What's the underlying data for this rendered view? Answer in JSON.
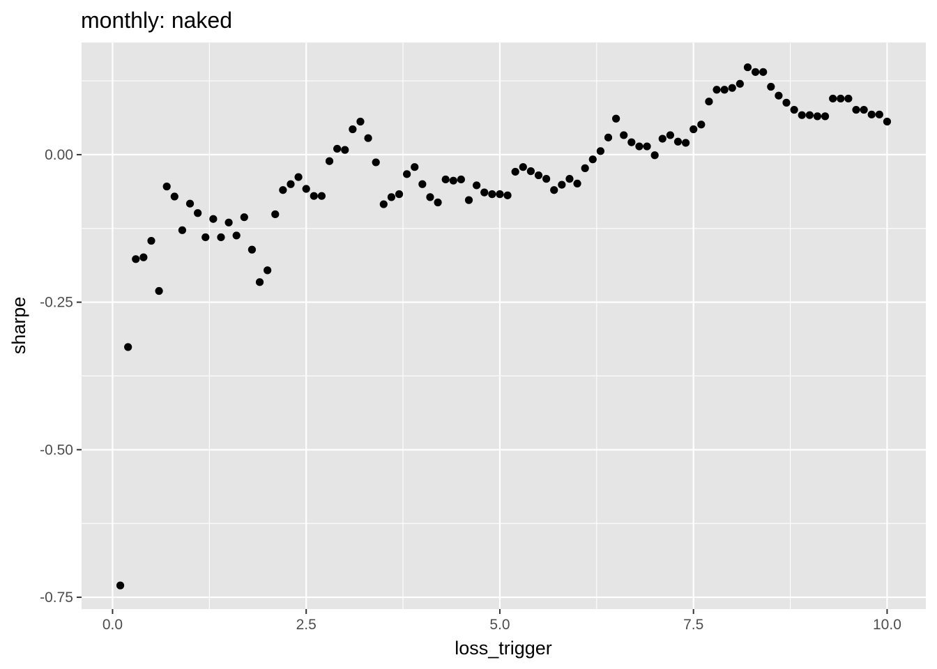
{
  "chart_data": {
    "type": "scatter",
    "title": "monthly: naked",
    "xlabel": "loss_trigger",
    "ylabel": "sharpe",
    "xlim": [
      -0.4,
      10.5
    ],
    "ylim": [
      -0.77,
      0.19
    ],
    "xticks": [
      {
        "value": 0.0,
        "label": "0.0"
      },
      {
        "value": 2.5,
        "label": "2.5"
      },
      {
        "value": 5.0,
        "label": "5.0"
      },
      {
        "value": 7.5,
        "label": "7.5"
      },
      {
        "value": 10.0,
        "label": "10.0"
      }
    ],
    "yticks": [
      {
        "value": 0.0,
        "label": "0.00"
      },
      {
        "value": -0.25,
        "label": "-0.25"
      },
      {
        "value": -0.5,
        "label": "-0.50"
      },
      {
        "value": -0.75,
        "label": "-0.75"
      }
    ],
    "grid": true,
    "colors": {
      "panel": "#e5e5e5",
      "grid": "#ffffff",
      "point": "#000000",
      "tick_text": "#4d4d4d",
      "tick_mark": "#333333"
    },
    "x": [
      0.1,
      0.2,
      0.3,
      0.4,
      0.5,
      0.6,
      0.7,
      0.8,
      0.9,
      1.0,
      1.1,
      1.2,
      1.3,
      1.4,
      1.5,
      1.6,
      1.7,
      1.8,
      1.9,
      2.0,
      2.1,
      2.2,
      2.3,
      2.4,
      2.5,
      2.6,
      2.7,
      2.8,
      2.9,
      3.0,
      3.1,
      3.2,
      3.3,
      3.4,
      3.5,
      3.6,
      3.7,
      3.8,
      3.9,
      4.0,
      4.1,
      4.2,
      4.3,
      4.4,
      4.5,
      4.6,
      4.7,
      4.8,
      4.9,
      5.0,
      5.1,
      5.2,
      5.3,
      5.4,
      5.5,
      5.6,
      5.7,
      5.8,
      5.9,
      6.0,
      6.1,
      6.2,
      6.3,
      6.4,
      6.5,
      6.6,
      6.7,
      6.8,
      6.9,
      7.0,
      7.1,
      7.2,
      7.3,
      7.4,
      7.5,
      7.6,
      7.7,
      7.8,
      7.9,
      8.0,
      8.1,
      8.2,
      8.3,
      8.4,
      8.5,
      8.6,
      8.7,
      8.8,
      8.9,
      9.0,
      9.1,
      9.2,
      9.3,
      9.4,
      9.5,
      9.6,
      9.7,
      9.8,
      9.9,
      10.0
    ],
    "y": [
      -0.73,
      -0.326,
      -0.177,
      -0.174,
      -0.146,
      -0.231,
      -0.054,
      -0.071,
      -0.128,
      -0.083,
      -0.099,
      -0.14,
      -0.109,
      -0.14,
      -0.115,
      -0.137,
      -0.106,
      -0.161,
      -0.216,
      -0.196,
      -0.101,
      -0.06,
      -0.05,
      -0.038,
      -0.058,
      -0.07,
      -0.07,
      -0.011,
      0.01,
      0.008,
      0.043,
      0.056,
      0.028,
      -0.013,
      -0.084,
      -0.072,
      -0.067,
      -0.033,
      -0.021,
      -0.05,
      -0.072,
      -0.081,
      -0.042,
      -0.044,
      -0.042,
      -0.077,
      -0.052,
      -0.064,
      -0.067,
      -0.067,
      -0.069,
      -0.029,
      -0.021,
      -0.028,
      -0.035,
      -0.041,
      -0.06,
      -0.051,
      -0.041,
      -0.049,
      -0.023,
      -0.008,
      0.006,
      0.029,
      0.061,
      0.033,
      0.021,
      0.014,
      0.014,
      -0.001,
      0.027,
      0.033,
      0.022,
      0.02,
      0.043,
      0.051,
      0.09,
      0.11,
      0.11,
      0.113,
      0.12,
      0.148,
      0.14,
      0.14,
      0.115,
      0.1,
      0.088,
      0.076,
      0.067,
      0.067,
      0.065,
      0.065,
      0.095,
      0.095,
      0.095,
      0.076,
      0.076,
      0.068,
      0.068,
      0.056
    ]
  }
}
